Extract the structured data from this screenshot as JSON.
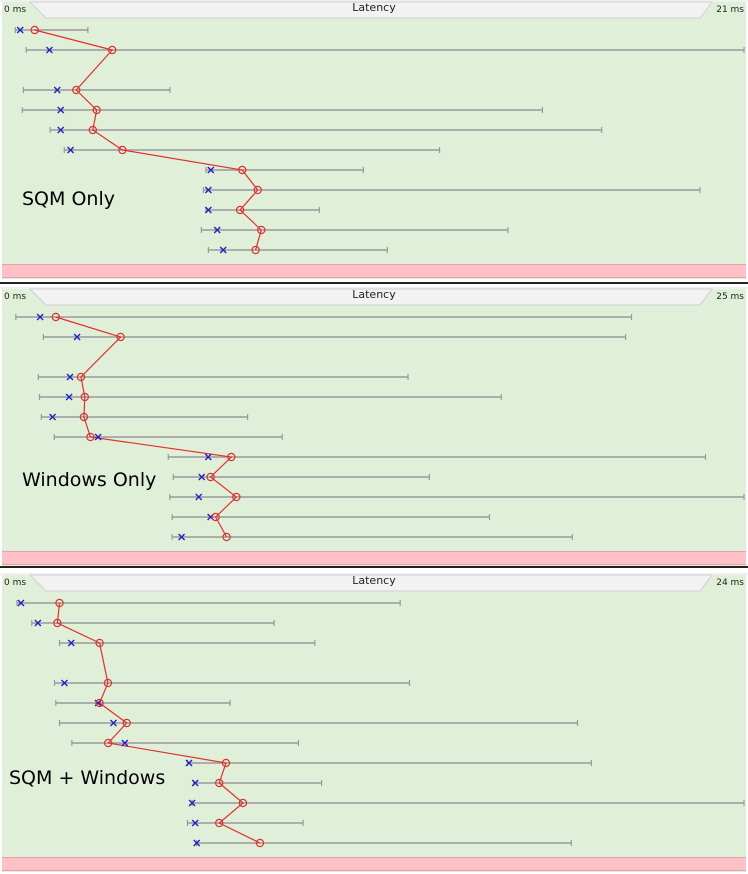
{
  "colors": {
    "panel_bg": "#e0f0d8",
    "range_line": "#999999",
    "median_marker": "#2020d0",
    "mean_line": "#e03030",
    "footer_bar": "#ffc0c8"
  },
  "chart_data": [
    {
      "type": "range-dot",
      "title": "Latency",
      "min_label": "0 ms",
      "max_label": "21 ms",
      "name": "SQM Only",
      "xlim": [
        0,
        21
      ],
      "rows": [
        {
          "row": 0,
          "min": 0.32,
          "max": 2.38,
          "median": 0.46,
          "mean": 0.87
        },
        {
          "row": 1,
          "min": 0.63,
          "max": 21.0,
          "median": 1.29,
          "mean": 3.07
        },
        {
          "row": 3,
          "min": 0.55,
          "max": 4.71,
          "median": 1.51,
          "mean": 2.05
        },
        {
          "row": 4,
          "min": 0.52,
          "max": 15.28,
          "median": 1.61,
          "mean": 2.63
        },
        {
          "row": 5,
          "min": 1.31,
          "max": 16.96,
          "median": 1.61,
          "mean": 2.52
        },
        {
          "row": 6,
          "min": 1.71,
          "max": 12.36,
          "median": 1.89,
          "mean": 3.36
        },
        {
          "row": 7,
          "min": 5.73,
          "max": 10.2,
          "median": 5.87,
          "mean": 6.76
        },
        {
          "row": 8,
          "min": 5.66,
          "max": 19.75,
          "median": 5.8,
          "mean": 7.2
        },
        {
          "row": 9,
          "min": 5.73,
          "max": 8.95,
          "median": 5.8,
          "mean": 6.7
        },
        {
          "row": 10,
          "min": 5.6,
          "max": 14.3,
          "median": 6.05,
          "mean": 7.3
        },
        {
          "row": 11,
          "min": 5.8,
          "max": 10.88,
          "median": 6.22,
          "mean": 7.14
        }
      ]
    },
    {
      "type": "range-dot",
      "title": "Latency",
      "min_label": "0 ms",
      "max_label": "25 ms",
      "name": "Windows Only",
      "xlim": [
        0,
        25
      ],
      "rows": [
        {
          "row": 0,
          "min": 0.4,
          "max": 21.2,
          "median": 1.22,
          "mean": 1.75
        },
        {
          "row": 1,
          "min": 1.33,
          "max": 21.0,
          "median": 2.47,
          "mean": 3.94
        },
        {
          "row": 3,
          "min": 1.16,
          "max": 13.65,
          "median": 2.23,
          "mean": 2.6
        },
        {
          "row": 4,
          "min": 1.2,
          "max": 16.8,
          "median": 2.2,
          "mean": 2.73
        },
        {
          "row": 5,
          "min": 1.26,
          "max": 8.23,
          "median": 1.64,
          "mean": 2.7
        },
        {
          "row": 6,
          "min": 1.7,
          "max": 9.4,
          "median": 3.18,
          "mean": 2.92
        },
        {
          "row": 7,
          "min": 5.55,
          "max": 23.7,
          "median": 6.9,
          "mean": 7.68
        },
        {
          "row": 8,
          "min": 5.72,
          "max": 14.37,
          "median": 6.68,
          "mean": 6.98
        },
        {
          "row": 9,
          "min": 5.6,
          "max": 25.0,
          "median": 6.58,
          "mean": 7.85
        },
        {
          "row": 10,
          "min": 5.68,
          "max": 16.4,
          "median": 6.98,
          "mean": 7.15
        },
        {
          "row": 11,
          "min": 5.68,
          "max": 19.2,
          "median": 6.0,
          "mean": 7.52
        }
      ]
    },
    {
      "type": "range-dot",
      "title": "Latency",
      "min_label": "0 ms",
      "max_label": "24 ms",
      "name": "SQM + Windows",
      "xlim": [
        0,
        24
      ],
      "rows": [
        {
          "row": 0,
          "min": 0.42,
          "max": 12.85,
          "median": 0.55,
          "mean": 1.8
        },
        {
          "row": 1,
          "min": 0.9,
          "max": 8.76,
          "median": 1.1,
          "mean": 1.73
        },
        {
          "row": 2,
          "min": 1.8,
          "max": 10.08,
          "median": 2.18,
          "mean": 3.1
        },
        {
          "row": 4,
          "min": 1.64,
          "max": 13.15,
          "median": 1.96,
          "mean": 3.37
        },
        {
          "row": 5,
          "min": 1.68,
          "max": 7.33,
          "median": 3.05,
          "mean": 3.1
        },
        {
          "row": 6,
          "min": 1.8,
          "max": 18.6,
          "median": 3.55,
          "mean": 3.98
        },
        {
          "row": 7,
          "min": 2.2,
          "max": 9.55,
          "median": 3.92,
          "mean": 3.38
        },
        {
          "row": 8,
          "min": 5.95,
          "max": 19.05,
          "median": 6.0,
          "mean": 7.2
        },
        {
          "row": 9,
          "min": 6.15,
          "max": 10.3,
          "median": 6.2,
          "mean": 6.98
        },
        {
          "row": 10,
          "min": 6.1,
          "max": 24.0,
          "median": 6.1,
          "mean": 7.75
        },
        {
          "row": 11,
          "min": 5.95,
          "max": 9.7,
          "median": 6.2,
          "mean": 6.98
        },
        {
          "row": 12,
          "min": 6.25,
          "max": 18.4,
          "median": 6.25,
          "mean": 8.3
        }
      ]
    }
  ]
}
